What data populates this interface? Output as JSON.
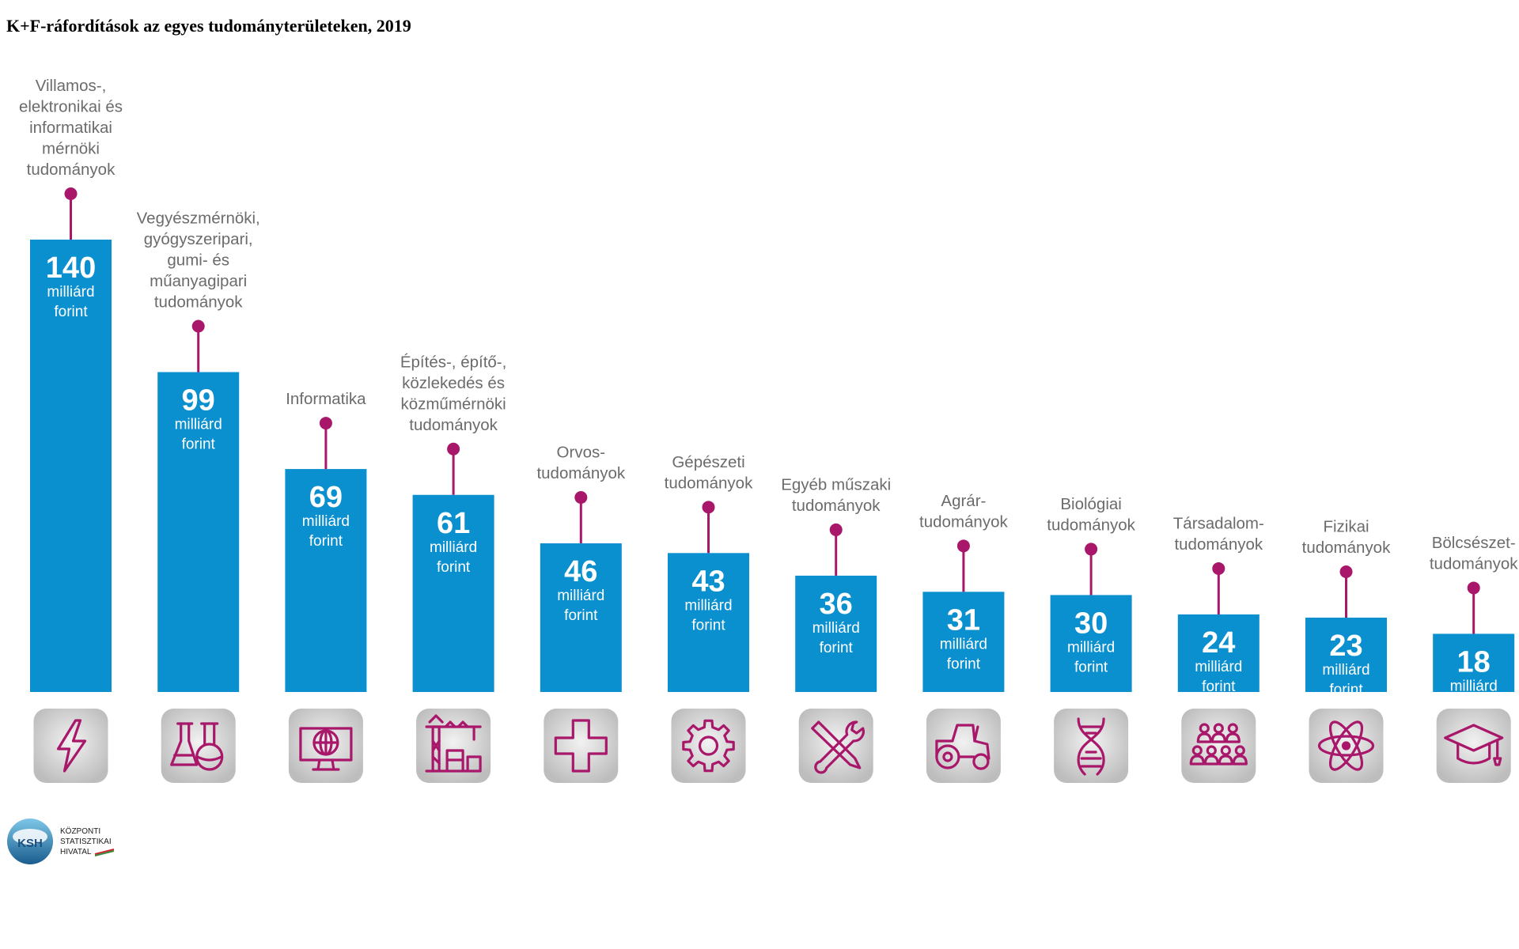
{
  "chart_data": {
    "type": "bar",
    "title": "K+F-ráfordítások az egyes tudományterületeken, 2019",
    "unit_lines": [
      "milliárd",
      "forint"
    ],
    "categories": [
      {
        "label_lines": [
          "Villamos-,",
          "elektronikai és",
          "informatikai",
          "mérnöki",
          "tudományok"
        ],
        "icon": "lightning-icon"
      },
      {
        "label_lines": [
          "Vegyészmérnöki,",
          "gyógyszeripari,",
          "gumi- és",
          "műanyagipari",
          "tudományok"
        ],
        "icon": "flask-icon"
      },
      {
        "label_lines": [
          "Informatika"
        ],
        "icon": "globe-monitor-icon"
      },
      {
        "label_lines": [
          "Építés-, építő-,",
          "közlekedés és",
          "közműmérnöki",
          "tudományok"
        ],
        "icon": "crane-icon"
      },
      {
        "label_lines": [
          "Orvos-",
          "tudományok"
        ],
        "icon": "medical-cross-icon"
      },
      {
        "label_lines": [
          "Gépészeti",
          "tudományok"
        ],
        "icon": "gear-icon"
      },
      {
        "label_lines": [
          "Egyéb műszaki",
          "tudományok"
        ],
        "icon": "tools-icon"
      },
      {
        "label_lines": [
          "Agrár-",
          "tudományok"
        ],
        "icon": "tractor-icon"
      },
      {
        "label_lines": [
          "Biológiai",
          "tudományok"
        ],
        "icon": "dna-icon"
      },
      {
        "label_lines": [
          "Társadalom-",
          "tudományok"
        ],
        "icon": "people-icon"
      },
      {
        "label_lines": [
          "Fizikai",
          "tudományok"
        ],
        "icon": "atom-icon"
      },
      {
        "label_lines": [
          "Bölcsészet-",
          "tudományok"
        ],
        "icon": "graduation-cap-icon"
      }
    ],
    "values": [
      140,
      99,
      69,
      61,
      46,
      43,
      36,
      31,
      30,
      24,
      23,
      18
    ],
    "ylim": [
      0,
      140
    ],
    "colors": {
      "bar": "#0a8fcf",
      "accent": "#a8176a",
      "icon_bg": "#cccccc",
      "label": "#6b6b6b"
    }
  },
  "logo": {
    "abbr": "KSH",
    "lines": [
      "KÖZPONTI",
      "STATISZTIKAI",
      "HIVATAL"
    ]
  }
}
